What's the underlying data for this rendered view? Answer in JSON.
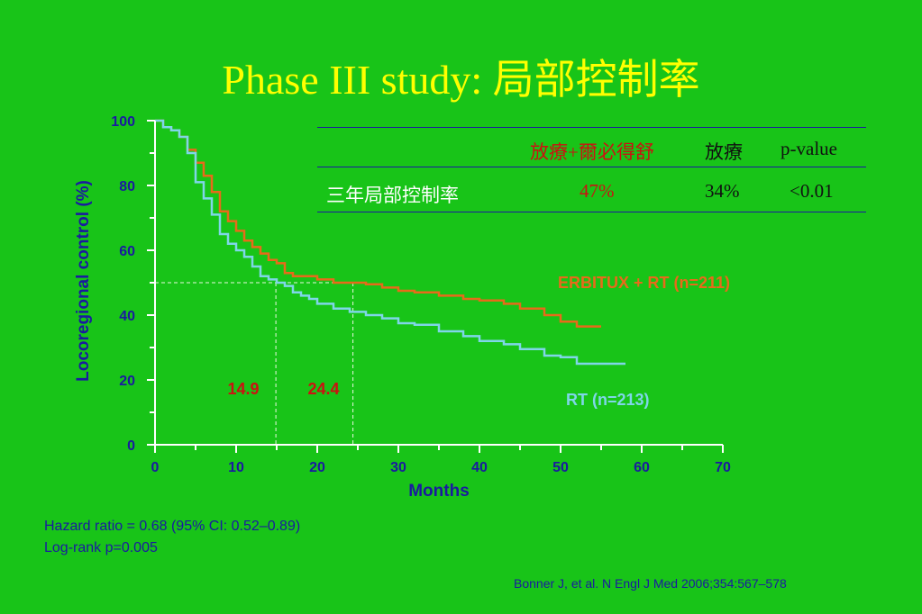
{
  "slide": {
    "title": "Phase III study: 局部控制率",
    "hazard_ratio": "Hazard ratio = 0.68 (95% CI: 0.52–0.89)",
    "logrank": "Log-rank p=0.005",
    "source": "Bonner J, et al. N Engl J Med 2006;354:567–578"
  },
  "table": {
    "headers": [
      "",
      "放療+爾必得舒",
      "放療",
      "p-value"
    ],
    "rows": [
      {
        "label": "三年局部控制率",
        "erbitux_rt": "47%",
        "rt": "34%",
        "p": "<0.01"
      }
    ]
  },
  "colors": {
    "background": "#18c418",
    "title": "#ffff00",
    "axis": "#1a1aa0",
    "erbitux_rt": "#e86a1a",
    "rt": "#7fd6e8",
    "median_label": "#cc1111",
    "guide": "#e8f8e0"
  },
  "chart_data": {
    "type": "line",
    "xlabel": "Months",
    "ylabel": "Locoregional control (%)",
    "xlim": [
      0,
      70
    ],
    "ylim": [
      0,
      100
    ],
    "xticks": [
      0,
      10,
      20,
      30,
      40,
      50,
      60,
      70
    ],
    "yticks": [
      0,
      20,
      40,
      60,
      80,
      100
    ],
    "grid": false,
    "series": [
      {
        "name": "ERBITUX + RT (n=211)",
        "color": "#e86a1a",
        "x": [
          0,
          1,
          2,
          3,
          4,
          5,
          6,
          7,
          8,
          9,
          10,
          11,
          12,
          13,
          14,
          15,
          16,
          17,
          18,
          19,
          20,
          22,
          24,
          26,
          28,
          30,
          32,
          35,
          38,
          40,
          43,
          45,
          48,
          50,
          52,
          55
        ],
        "y": [
          100,
          98,
          97,
          95,
          91,
          87,
          83,
          78,
          72,
          69,
          66,
          63,
          61,
          59,
          57,
          56,
          53,
          52,
          52,
          52,
          51,
          50,
          50,
          49.5,
          48.5,
          47.5,
          47,
          46,
          45,
          44.5,
          43.5,
          42,
          40,
          38,
          36.5,
          36.5
        ]
      },
      {
        "name": "RT (n=213)",
        "color": "#7fd6e8",
        "x": [
          0,
          1,
          2,
          3,
          4,
          5,
          6,
          7,
          8,
          9,
          10,
          11,
          12,
          13,
          14,
          15,
          16,
          17,
          18,
          19,
          20,
          22,
          24,
          26,
          28,
          30,
          32,
          35,
          38,
          40,
          43,
          45,
          48,
          50,
          52,
          55,
          58
        ],
        "y": [
          100,
          98,
          97,
          95,
          90,
          81,
          76,
          71,
          65,
          62,
          60,
          58,
          55,
          52,
          51,
          50,
          49,
          47,
          46,
          45,
          43.5,
          42,
          41,
          40,
          39,
          37.5,
          37,
          35,
          33.5,
          32,
          31,
          29.5,
          27.5,
          27,
          25,
          25,
          25
        ]
      }
    ],
    "reference_line_y": 50,
    "medians": [
      {
        "x": 14.9,
        "label": "14.9"
      },
      {
        "x": 24.4,
        "label": "24.4"
      }
    ],
    "annotations": [
      {
        "text": "ERBITUX + RT (n=211)",
        "series": "ERBITUX + RT (n=211)"
      },
      {
        "text": "RT (n=213)",
        "series": "RT (n=213)"
      }
    ]
  }
}
